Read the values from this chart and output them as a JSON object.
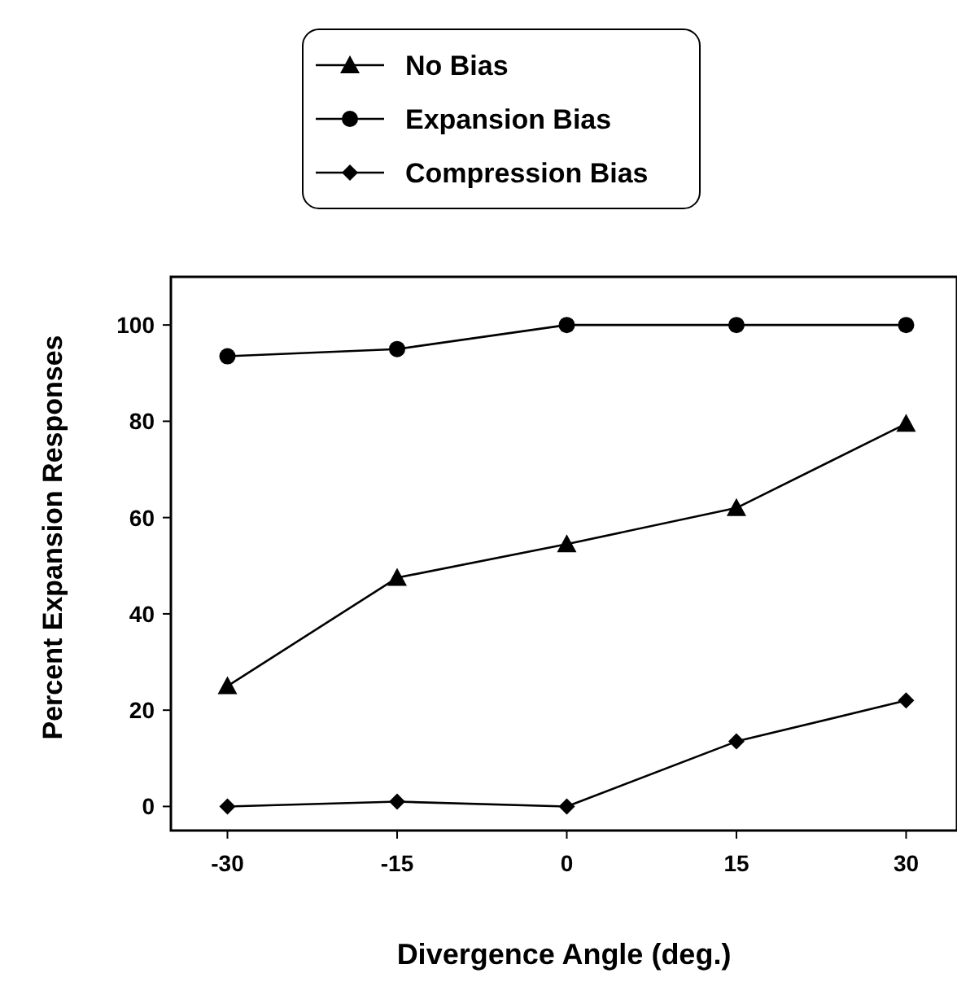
{
  "chart_data": {
    "type": "line",
    "xlabel": "Divergence Angle (deg.)",
    "ylabel": "Percent Expansion Responses",
    "x": [
      -30,
      -15,
      0,
      15,
      30
    ],
    "series": [
      {
        "name": "No Bias",
        "color": "#000000",
        "marker": "triangle",
        "values": [
          25,
          47.5,
          54.5,
          62,
          79.5
        ]
      },
      {
        "name": "Expansion Bias",
        "color": "#000000",
        "marker": "circle",
        "values": [
          93.5,
          95,
          100,
          100,
          100
        ]
      },
      {
        "name": "Compression Bias",
        "color": "#000000",
        "marker": "diamond",
        "values": [
          0,
          1,
          0,
          13.5,
          22
        ]
      }
    ],
    "xlim": [
      -35,
      34.5
    ],
    "xticks": [
      -30,
      -15,
      0,
      15,
      30
    ],
    "ylim": [
      -5,
      110
    ],
    "yticks": [
      0,
      20,
      40,
      60,
      80,
      100
    ],
    "grid": false,
    "legend": "top",
    "line_style": "solid"
  }
}
